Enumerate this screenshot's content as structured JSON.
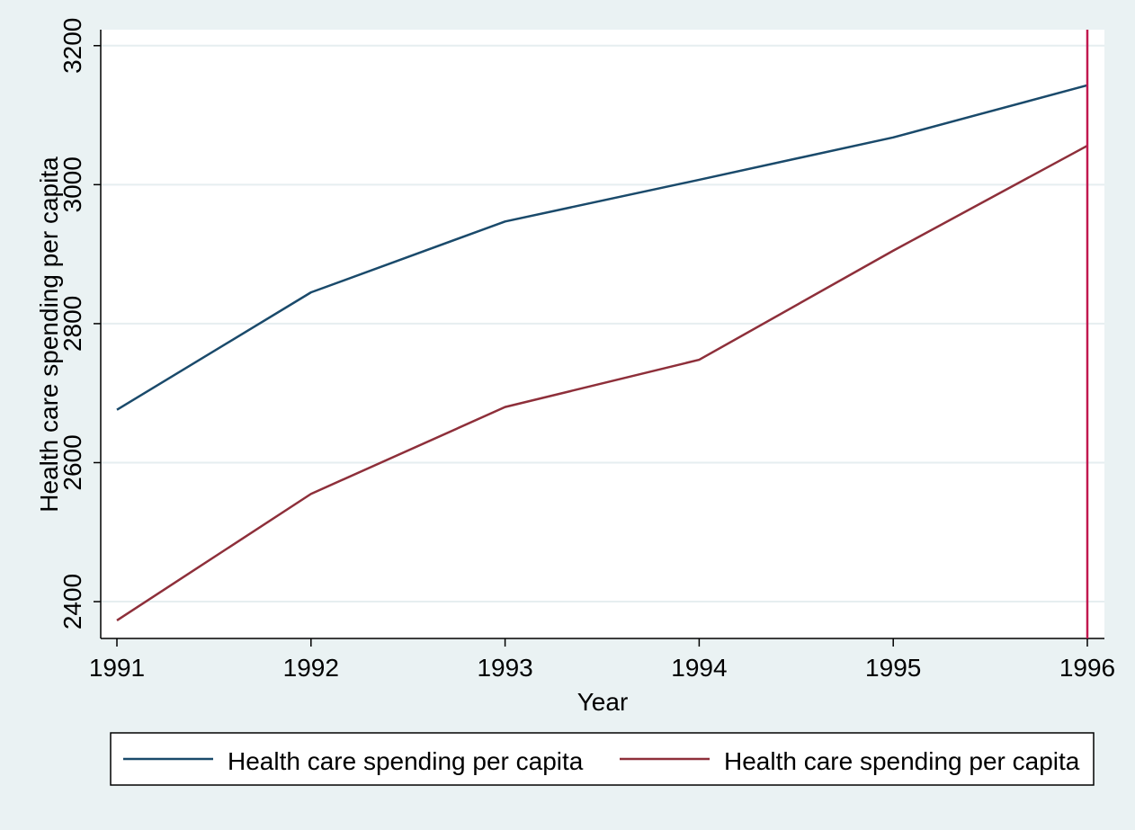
{
  "chart_data": {
    "type": "line",
    "x": [
      1991,
      1992,
      1993,
      1994,
      1995,
      1996
    ],
    "xlabel": "Year",
    "ylabel": "Health care spending per capita",
    "ylim": [
      2347,
      3223
    ],
    "yticks": [
      2400,
      2600,
      2800,
      3000,
      3200
    ],
    "xticks": [
      1991,
      1992,
      1993,
      1994,
      1995,
      1996
    ],
    "grid": true,
    "legend": "bottom",
    "vline": {
      "x": 1996,
      "color": "#c1184f"
    },
    "series": [
      {
        "name": "Health care spending per capita",
        "color": "#1a4a6b",
        "values": [
          2676,
          2845,
          2947,
          3007,
          3068,
          3143
        ]
      },
      {
        "name": "Health care spending per capita",
        "color": "#8e2f3a",
        "values": [
          2373,
          2555,
          2680,
          2748,
          2905,
          3056
        ]
      }
    ]
  }
}
